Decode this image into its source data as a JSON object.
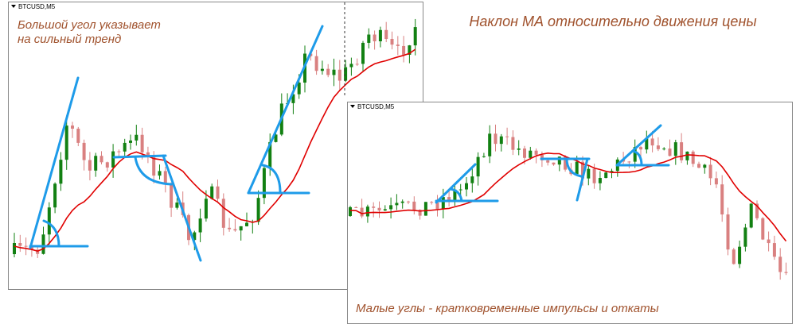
{
  "left_chart": {
    "symbol": "BTCUSD,M5",
    "note_lines": [
      "Большой угол указывает",
      "на сильный тренд"
    ]
  },
  "title": "Наклон МА относительно движения цены",
  "right_chart": {
    "symbol": "BTCUSD,M5",
    "note": "Малые углы - кратковременные импульсы и откаты"
  }
}
